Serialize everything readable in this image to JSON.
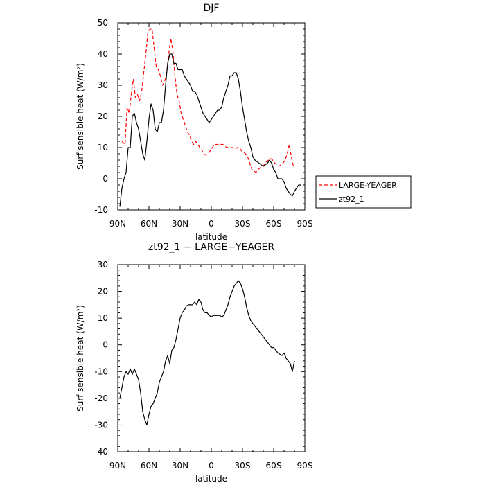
{
  "chart_data": [
    {
      "type": "line",
      "title": "DJF",
      "xlabel": "latitude",
      "ylabel": "Surf sensible heat (W/m²)",
      "xlim": [
        90,
        -90
      ],
      "ylim": [
        -10,
        50
      ],
      "xticks": [
        90,
        60,
        30,
        0,
        -30,
        -60,
        -90
      ],
      "xtick_labels": [
        "90N",
        "60N",
        "30N",
        "0",
        "30S",
        "60S",
        "90S"
      ],
      "yticks": [
        -10,
        0,
        10,
        20,
        30,
        40,
        50
      ],
      "ytick_labels": [
        "-10",
        "0",
        "10",
        "20",
        "30",
        "40",
        "50"
      ],
      "legend": {
        "placement": "right-outside"
      },
      "series": [
        {
          "name": "LARGE-YEAGER",
          "color": "#ff0000",
          "dash": "dashed",
          "x": [
            86,
            83,
            81,
            79,
            77,
            75,
            73,
            71,
            69,
            67,
            65,
            63,
            61,
            59,
            57,
            55,
            53,
            51,
            49,
            47,
            45,
            43,
            41,
            39,
            37,
            35,
            33,
            31,
            29,
            27,
            25,
            23,
            21,
            19,
            17,
            15,
            13,
            11,
            9,
            7,
            5,
            3,
            1,
            -1,
            -3,
            -5,
            -7,
            -9,
            -11,
            -13,
            -15,
            -17,
            -19,
            -21,
            -23,
            -25,
            -27,
            -29,
            -31,
            -33,
            -35,
            -37,
            -39,
            -41,
            -43,
            -45,
            -47,
            -49,
            -51,
            -53,
            -55,
            -57,
            -59,
            -61,
            -63,
            -65,
            -67,
            -69,
            -71,
            -73,
            -75,
            -77,
            -79
          ],
          "y": [
            12,
            11,
            23,
            21,
            27,
            32,
            26,
            27,
            25,
            28,
            34,
            40,
            47,
            48,
            48,
            42,
            36,
            35,
            33,
            30,
            31,
            34,
            40,
            45,
            41,
            33,
            27,
            25,
            21,
            19,
            17,
            15,
            14,
            12,
            11,
            12,
            11,
            10,
            9,
            8,
            7.5,
            8,
            9,
            10,
            11,
            11,
            11,
            11,
            11,
            10.5,
            10,
            10,
            10,
            10,
            9.5,
            10,
            10,
            9,
            8.5,
            8,
            7,
            5,
            3,
            2.5,
            2,
            3,
            3.5,
            4,
            4.5,
            5.5,
            6,
            6.5,
            6,
            5,
            4.5,
            4,
            4.5,
            5,
            6,
            8,
            11,
            7,
            4
          ]
        },
        {
          "name": "zt92_1",
          "color": "#000000",
          "dash": "solid",
          "x": [
            88,
            86,
            84,
            82,
            80,
            78,
            76,
            74,
            72,
            70,
            68,
            66,
            64,
            62,
            60,
            58,
            56,
            54,
            52,
            50,
            48,
            46,
            44,
            42,
            40,
            38,
            36,
            34,
            32,
            30,
            28,
            26,
            24,
            22,
            20,
            18,
            16,
            14,
            12,
            10,
            8,
            6,
            4,
            2,
            0,
            -2,
            -4,
            -6,
            -8,
            -10,
            -12,
            -14,
            -16,
            -18,
            -20,
            -22,
            -24,
            -26,
            -28,
            -30,
            -32,
            -34,
            -36,
            -38,
            -40,
            -42,
            -44,
            -46,
            -48,
            -50,
            -52,
            -54,
            -56,
            -58,
            -60,
            -62,
            -64,
            -66,
            -68,
            -70,
            -72,
            -74,
            -76,
            -78,
            -80,
            -82,
            -84,
            -86
          ],
          "y": [
            -9,
            -3,
            0,
            2,
            10,
            10,
            20,
            21,
            18,
            16,
            12,
            8,
            6,
            12,
            19,
            24,
            22,
            16,
            15,
            18,
            18,
            22,
            30,
            37,
            40,
            40,
            37,
            37,
            35,
            35,
            35,
            33,
            32,
            31,
            30,
            28,
            28,
            27,
            25,
            23,
            21,
            20,
            19,
            18,
            19,
            20,
            21,
            22,
            22,
            23,
            26,
            28,
            30,
            33,
            33,
            34,
            34,
            32,
            28,
            23,
            19,
            15,
            12,
            10,
            7,
            6,
            5.5,
            5,
            4.5,
            4,
            4.5,
            5,
            6,
            5,
            3,
            2,
            0,
            0,
            0,
            -1,
            -3,
            -4,
            -5,
            -5.5,
            -4,
            -3,
            -2,
            -2
          ]
        }
      ]
    },
    {
      "type": "line",
      "title": "zt92_1 − LARGE−YEAGER",
      "xlabel": "latitude",
      "ylabel": "Surf sensible heat (W/m²)",
      "xlim": [
        90,
        -90
      ],
      "ylim": [
        -40,
        30
      ],
      "xticks": [
        90,
        60,
        30,
        0,
        -30,
        -60,
        -90
      ],
      "xtick_labels": [
        "90N",
        "60N",
        "30N",
        "0",
        "30S",
        "60S",
        "90S"
      ],
      "yticks": [
        -40,
        -30,
        -20,
        -10,
        0,
        10,
        20,
        30
      ],
      "ytick_labels": [
        "-40",
        "-30",
        "-20",
        "-10",
        "0",
        "10",
        "20",
        "30"
      ],
      "series": [
        {
          "color": "#000000",
          "dash": "solid",
          "x": [
            88,
            86,
            84,
            82,
            80,
            78,
            76,
            74,
            72,
            70,
            68,
            66,
            64,
            62,
            60,
            58,
            56,
            54,
            52,
            50,
            48,
            46,
            44,
            42,
            40,
            38,
            36,
            34,
            32,
            30,
            28,
            26,
            24,
            22,
            20,
            18,
            16,
            14,
            12,
            10,
            8,
            6,
            4,
            2,
            0,
            -2,
            -4,
            -6,
            -8,
            -10,
            -12,
            -14,
            -16,
            -18,
            -20,
            -22,
            -24,
            -26,
            -28,
            -30,
            -32,
            -34,
            -36,
            -38,
            -40,
            -42,
            -44,
            -46,
            -48,
            -50,
            -52,
            -54,
            -56,
            -58,
            -60,
            -62,
            -64,
            -66,
            -68,
            -70,
            -72,
            -74,
            -76,
            -78,
            -80
          ],
          "y": [
            -20,
            -16,
            -12,
            -10,
            -11,
            -9,
            -11,
            -9,
            -11,
            -13,
            -18,
            -25,
            -28,
            -30,
            -26,
            -23,
            -22,
            -20,
            -18,
            -14,
            -12,
            -10,
            -6,
            -4,
            -7,
            -2,
            -1,
            2,
            6,
            10,
            12,
            13,
            14.5,
            15,
            15,
            15,
            16,
            15,
            17,
            16,
            13,
            12,
            12,
            11,
            10.5,
            11,
            11,
            11,
            11,
            10.5,
            11,
            13,
            15,
            18,
            20,
            22,
            23,
            24,
            23,
            21,
            18,
            14,
            11,
            9,
            8,
            7,
            6,
            5,
            4,
            3,
            2,
            1,
            0,
            -1,
            -1,
            -2,
            -3,
            -3.5,
            -4,
            -3,
            -5,
            -6,
            -7,
            -10,
            -6
          ]
        }
      ]
    }
  ]
}
